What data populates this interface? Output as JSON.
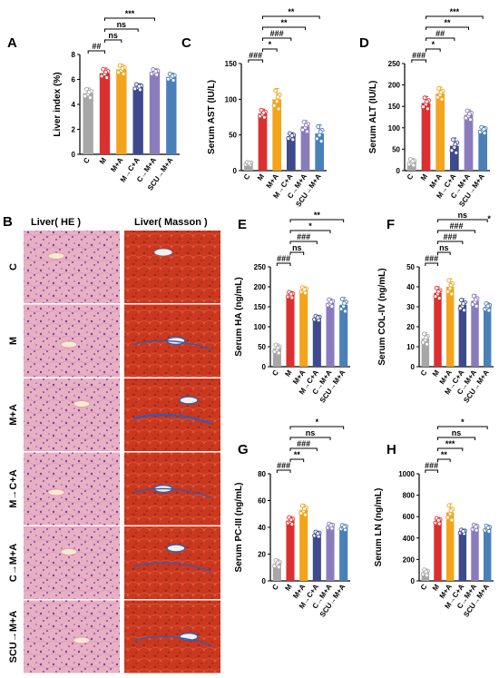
{
  "colors": {
    "C": "#a7a7a7",
    "M": "#dc2f2f",
    "M+A": "#f3a41b",
    "M→C+A": "#3d4a8c",
    "C→M+A": "#8a7cbc",
    "SCU→M+A": "#4a80b8",
    "he_bg": "#eab5c8",
    "masson_bg": "#c93a26"
  },
  "histology": {
    "panel_letter": "B",
    "col_headers": [
      "Liver( HE )",
      "Liver( Masson )"
    ],
    "rows": [
      "C",
      "M",
      "M+A",
      "M→C+A",
      "C→M+A",
      "SCU→M+A"
    ]
  },
  "chart_data": [
    {
      "id": "A",
      "type": "bar",
      "panel_letter": "A",
      "ylabel": "Liver index (%)",
      "categories": [
        "C",
        "M",
        "M+A",
        "M→C+A",
        "C→M+A",
        "SCU→M+A"
      ],
      "values": [
        4.9,
        6.5,
        6.8,
        5.4,
        6.6,
        6.2
      ],
      "errors": [
        0.4,
        0.4,
        0.4,
        0.25,
        0.25,
        0.3
      ],
      "ylim": [
        0,
        8
      ],
      "yticks": [
        0,
        2,
        4,
        6,
        8
      ],
      "annotations": [
        {
          "from": 0,
          "to": 1,
          "label": "##"
        },
        {
          "from": 1,
          "to": 2,
          "label": "ns"
        },
        {
          "from": 1,
          "to": 3,
          "label": "ns"
        },
        {
          "from": 1,
          "to": 4,
          "label": "***"
        }
      ]
    },
    {
      "id": "C",
      "type": "bar",
      "panel_letter": "C",
      "ylabel": "Serum AST (IU/L)",
      "categories": [
        "C",
        "M",
        "M+A",
        "M→C+A",
        "C→M+A",
        "SCU→M+A"
      ],
      "values": [
        10,
        80,
        100,
        48,
        62,
        52
      ],
      "errors": [
        2,
        6,
        15,
        5,
        8,
        12
      ],
      "ylim": [
        0,
        150
      ],
      "yticks": [
        0,
        50,
        100,
        150
      ],
      "annotations": [
        {
          "from": 0,
          "to": 1,
          "label": "###"
        },
        {
          "from": 1,
          "to": 2,
          "label": "*"
        },
        {
          "from": 1,
          "to": 3,
          "label": "###"
        },
        {
          "from": 1,
          "to": 4,
          "label": "**"
        },
        {
          "from": 1,
          "to": 5,
          "label": "**"
        }
      ]
    },
    {
      "id": "D",
      "type": "bar",
      "panel_letter": "D",
      "ylabel": "Serum ALT (IU/L)",
      "categories": [
        "C",
        "M",
        "M+A",
        "M→C+A",
        "C→M+A",
        "SCU→M+A"
      ],
      "values": [
        20,
        158,
        180,
        58,
        130,
        95
      ],
      "errors": [
        8,
        15,
        15,
        18,
        12,
        8
      ],
      "ylim": [
        0,
        250
      ],
      "yticks": [
        0,
        50,
        100,
        150,
        200,
        250
      ],
      "annotations": [
        {
          "from": 0,
          "to": 1,
          "label": "###"
        },
        {
          "from": 1,
          "to": 2,
          "label": "*"
        },
        {
          "from": 1,
          "to": 3,
          "label": "##"
        },
        {
          "from": 1,
          "to": 4,
          "label": "**"
        },
        {
          "from": 1,
          "to": 5,
          "label": "***"
        }
      ]
    },
    {
      "id": "E",
      "type": "bar",
      "panel_letter": "E",
      "ylabel": "Serum HA (ng/mL)",
      "categories": [
        "C",
        "M",
        "M+A",
        "M→C+A",
        "C→M+A",
        "SCU→M+A"
      ],
      "values": [
        45,
        180,
        192,
        122,
        160,
        155
      ],
      "errors": [
        12,
        8,
        8,
        6,
        10,
        18
      ],
      "ylim": [
        0,
        250
      ],
      "yticks": [
        0,
        50,
        100,
        150,
        200,
        250
      ],
      "annotations": [
        {
          "from": 0,
          "to": 1,
          "label": "###"
        },
        {
          "from": 1,
          "to": 2,
          "label": "ns"
        },
        {
          "from": 1,
          "to": 3,
          "label": "###"
        },
        {
          "from": 1,
          "to": 4,
          "label": "*"
        },
        {
          "from": 1,
          "to": 5,
          "label": "**"
        }
      ]
    },
    {
      "id": "F",
      "type": "bar",
      "panel_letter": "F",
      "ylabel": "Serum COL-IV (ng/mL)",
      "categories": [
        "C",
        "M",
        "M+A",
        "M→C+A",
        "C→M+A",
        "SCU→M+A"
      ],
      "values": [
        14,
        37,
        40,
        31,
        33,
        30
      ],
      "errors": [
        3,
        3,
        4,
        3,
        3,
        2
      ],
      "ylim": [
        0,
        50
      ],
      "yticks": [
        0,
        10,
        20,
        30,
        40,
        50
      ],
      "annotations": [
        {
          "from": 0,
          "to": 1,
          "label": "###"
        },
        {
          "from": 1,
          "to": 2,
          "label": "ns"
        },
        {
          "from": 1,
          "to": 3,
          "label": "###"
        },
        {
          "from": 1,
          "to": 4,
          "label": "###"
        },
        {
          "from": 1,
          "to": 5,
          "label": "ns"
        }
      ],
      "top_mark": "*"
    },
    {
      "id": "G",
      "type": "bar",
      "panel_letter": "G",
      "ylabel": "Serum PC-III (ng/mL)",
      "categories": [
        "C",
        "M",
        "M+A",
        "M→C+A",
        "C→M+A",
        "SCU→M+A"
      ],
      "values": [
        13,
        45,
        53,
        35,
        41,
        40
      ],
      "errors": [
        3,
        3,
        4,
        2,
        2,
        2
      ],
      "ylim": [
        0,
        80
      ],
      "yticks": [
        0,
        20,
        40,
        60,
        80
      ],
      "annotations": [
        {
          "from": 0,
          "to": 1,
          "label": "###"
        },
        {
          "from": 1,
          "to": 2,
          "label": "**"
        },
        {
          "from": 1,
          "to": 3,
          "label": "###"
        },
        {
          "from": 1,
          "to": 4,
          "label": "ns"
        },
        {
          "from": 1,
          "to": 5,
          "label": "*"
        }
      ]
    },
    {
      "id": "H",
      "type": "bar",
      "panel_letter": "H",
      "ylabel": "Serum LN (ng/mL)",
      "categories": [
        "C",
        "M",
        "M+A",
        "M→C+A",
        "C→M+A",
        "SCU→M+A"
      ],
      "values": [
        80,
        560,
        640,
        460,
        500,
        490
      ],
      "errors": [
        30,
        30,
        80,
        20,
        30,
        30
      ],
      "ylim": [
        0,
        1000
      ],
      "yticks": [
        0,
        200,
        400,
        600,
        800,
        1000
      ],
      "annotations": [
        {
          "from": 0,
          "to": 1,
          "label": "###"
        },
        {
          "from": 1,
          "to": 2,
          "label": "**"
        },
        {
          "from": 1,
          "to": 3,
          "label": "***"
        },
        {
          "from": 1,
          "to": 4,
          "label": "ns"
        },
        {
          "from": 1,
          "to": 5,
          "label": "*"
        }
      ]
    }
  ]
}
